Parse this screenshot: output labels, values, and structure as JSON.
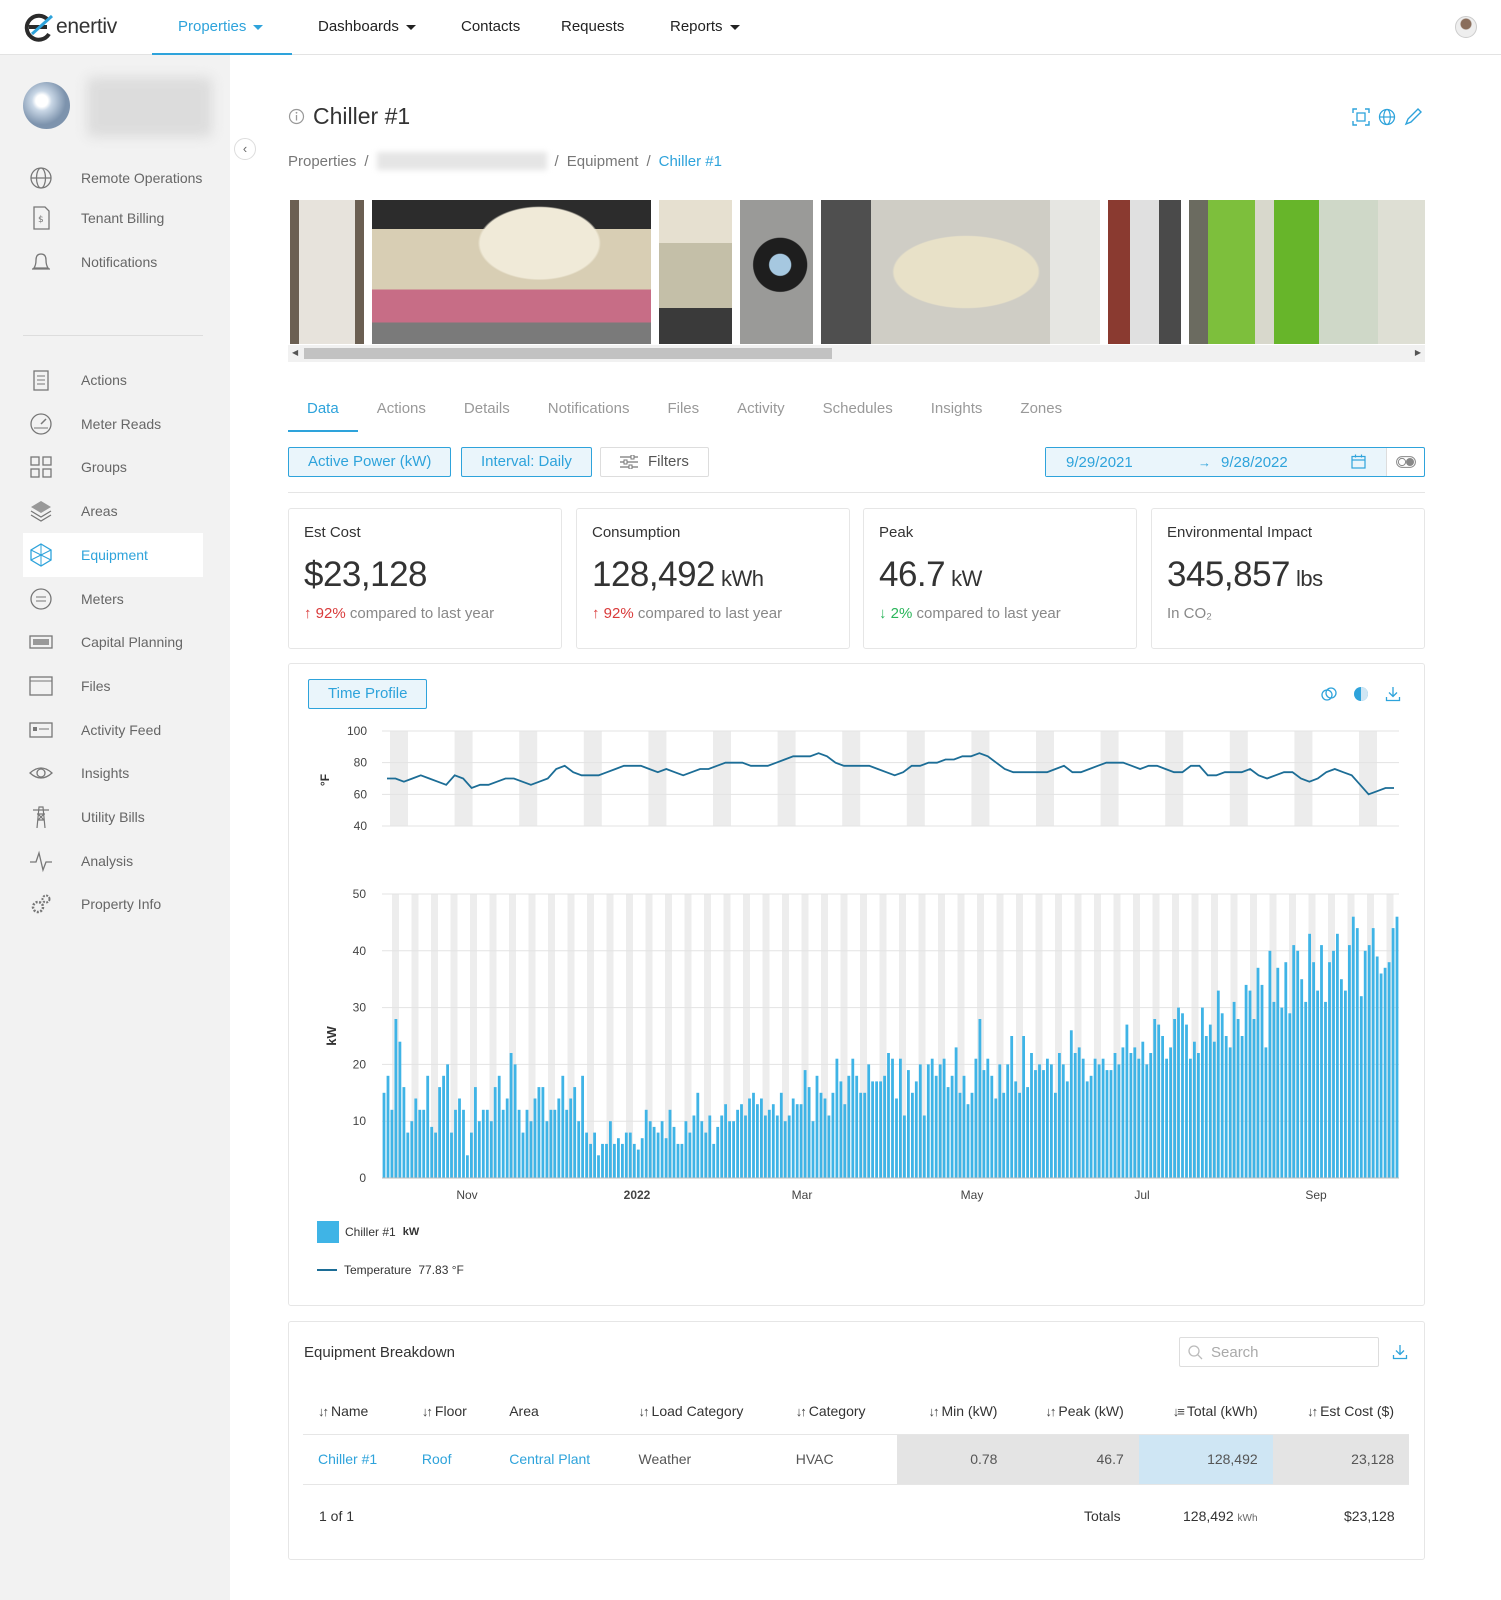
{
  "brand": {
    "name": "enertiv",
    "accent": "#2ea3db"
  },
  "topnav": {
    "items": [
      {
        "label": "Properties",
        "dropdown": true,
        "active": true
      },
      {
        "label": "Dashboards",
        "dropdown": true
      },
      {
        "label": "Contacts"
      },
      {
        "label": "Requests"
      },
      {
        "label": "Reports",
        "dropdown": true
      }
    ]
  },
  "sidebar": {
    "group1": [
      {
        "label": "Remote Operations",
        "icon": "globe-icon"
      },
      {
        "label": "Tenant Billing",
        "icon": "bill-icon"
      },
      {
        "label": "Notifications",
        "icon": "bell-icon"
      }
    ],
    "group2": [
      {
        "label": "Actions",
        "icon": "clipboard-icon"
      },
      {
        "label": "Meter Reads",
        "icon": "gauge-icon"
      },
      {
        "label": "Groups",
        "icon": "grid-icon"
      },
      {
        "label": "Areas",
        "icon": "layers-icon"
      },
      {
        "label": "Equipment",
        "icon": "snowflake-icon",
        "active": true
      },
      {
        "label": "Meters",
        "icon": "meter-icon"
      },
      {
        "label": "Capital Planning",
        "icon": "money-icon"
      },
      {
        "label": "Files",
        "icon": "folder-icon"
      },
      {
        "label": "Activity Feed",
        "icon": "feed-icon"
      },
      {
        "label": "Insights",
        "icon": "eye-icon"
      },
      {
        "label": "Utility Bills",
        "icon": "tower-icon"
      },
      {
        "label": "Analysis",
        "icon": "pulse-icon"
      },
      {
        "label": "Property Info",
        "icon": "gears-icon"
      }
    ]
  },
  "page": {
    "title": "Chiller #1"
  },
  "breadcrumb": {
    "root": "Properties",
    "section": "Equipment",
    "current": "Chiller #1"
  },
  "tabs": [
    "Data",
    "Actions",
    "Details",
    "Notifications",
    "Files",
    "Activity",
    "Schedules",
    "Insights",
    "Zones"
  ],
  "controls": {
    "metric": "Active Power (kW)",
    "interval": "Interval: Daily",
    "filters": "Filters",
    "date_from": "9/29/2021",
    "date_to": "9/28/2022"
  },
  "cards": [
    {
      "title": "Est Cost",
      "value": "$23,128",
      "unit": "",
      "direction": "up",
      "pct": "92%",
      "note": "compared to last year"
    },
    {
      "title": "Consumption",
      "value": "128,492",
      "unit": "kWh",
      "direction": "up",
      "pct": "92%",
      "note": "compared to last year"
    },
    {
      "title": "Peak",
      "value": "46.7",
      "unit": "kW",
      "direction": "down",
      "pct": "2%",
      "note": "compared to last year"
    },
    {
      "title": "Environmental Impact",
      "value": "345,857",
      "unit": "lbs",
      "note_plain": "In CO₂"
    }
  ],
  "chart_panel": {
    "button": "Time Profile"
  },
  "chart_data": [
    {
      "type": "line",
      "ylabel": "°F",
      "ylim": [
        40,
        100
      ],
      "yticks": [
        100,
        80,
        60,
        40
      ],
      "series": [
        {
          "name": "Temperature",
          "values": [
            70,
            70,
            68,
            70,
            72,
            70,
            68,
            66,
            72,
            70,
            64,
            66,
            66,
            68,
            70,
            70,
            68,
            66,
            68,
            70,
            76,
            78,
            74,
            72,
            72,
            72,
            74,
            76,
            78,
            78,
            78,
            76,
            74,
            76,
            74,
            72,
            74,
            76,
            76,
            78,
            80,
            80,
            80,
            78,
            78,
            78,
            80,
            82,
            84,
            84,
            84,
            86,
            84,
            80,
            78,
            78,
            78,
            78,
            76,
            74,
            72,
            74,
            78,
            78,
            80,
            80,
            82,
            82,
            84,
            84,
            86,
            84,
            80,
            76,
            74,
            74,
            74,
            74,
            74,
            76,
            78,
            74,
            74,
            76,
            78,
            80,
            80,
            80,
            78,
            76,
            78,
            78,
            76,
            74,
            74,
            78,
            78,
            72,
            72,
            74,
            74,
            74,
            76,
            72,
            70,
            72,
            74,
            74,
            70,
            68,
            70,
            74,
            76,
            74,
            72,
            66,
            60,
            62,
            64,
            64
          ]
        }
      ]
    },
    {
      "type": "bar",
      "ylabel": "kW",
      "ylim": [
        0,
        50
      ],
      "yticks": [
        50,
        40,
        30,
        20,
        10,
        0
      ],
      "xticks": [
        "Nov",
        "2022",
        "Mar",
        "May",
        "Jul",
        "Sep"
      ],
      "series": [
        {
          "name": "Chiller #1",
          "unit": "kW",
          "values": [
            15,
            18,
            12,
            28,
            24,
            16,
            8,
            10,
            14,
            12,
            12,
            18,
            9,
            8,
            16,
            18,
            20,
            8,
            12,
            14,
            12,
            4,
            8,
            16,
            10,
            12,
            12,
            10,
            16,
            18,
            12,
            14,
            22,
            20,
            12,
            8,
            12,
            10,
            14,
            16,
            16,
            10,
            12,
            12,
            14,
            18,
            12,
            14,
            16,
            10,
            18,
            8,
            6,
            8,
            4,
            6,
            6,
            10,
            6,
            7,
            6,
            8,
            8,
            6,
            5,
            7,
            12,
            10,
            9,
            8,
            10,
            7,
            12,
            9,
            6,
            6,
            10,
            8,
            11,
            15,
            10,
            8,
            11,
            6,
            9,
            11,
            13,
            10,
            10,
            12,
            13,
            11,
            14,
            15,
            13,
            14,
            11,
            12,
            13,
            11,
            15,
            10,
            11,
            14,
            13,
            13,
            19,
            16,
            10,
            18,
            15,
            14,
            11,
            15,
            21,
            17,
            13,
            18,
            21,
            18,
            15,
            15,
            20,
            17,
            17,
            17,
            18,
            22,
            21,
            14,
            21,
            11,
            19,
            15,
            17,
            20,
            11,
            20,
            21,
            18,
            20,
            21,
            16,
            18,
            23,
            15,
            18,
            13,
            15,
            21,
            28,
            19,
            21,
            18,
            14,
            20,
            15,
            20,
            25,
            17,
            15,
            25,
            16,
            22,
            19,
            20,
            19,
            21,
            20,
            15,
            22,
            20,
            17,
            26,
            22,
            23,
            21,
            17,
            18,
            21,
            20,
            21,
            19,
            19,
            22,
            20,
            23,
            27,
            22,
            23,
            21,
            24,
            20,
            22,
            28,
            27,
            25,
            21,
            23,
            28,
            30,
            29,
            27,
            21,
            24,
            22,
            30,
            25,
            27,
            24,
            33,
            29,
            25,
            23,
            31,
            28,
            25,
            34,
            33,
            28,
            37,
            34,
            23,
            40,
            31,
            37,
            30,
            38,
            29,
            41,
            40,
            35,
            31,
            43,
            38,
            33,
            41,
            31,
            38,
            40,
            43,
            35,
            33,
            41,
            46,
            44,
            32,
            40,
            41,
            44,
            39,
            36,
            37,
            38,
            44,
            46
          ]
        }
      ]
    }
  ],
  "legend": {
    "bar_name": "Chiller #1",
    "bar_unit": "kW",
    "line_name": "Temperature",
    "line_value": "77.83 °F"
  },
  "breakdown": {
    "title": "Equipment Breakdown",
    "search_placeholder": "Search",
    "columns": [
      "Name",
      "Floor",
      "Area",
      "Load Category",
      "Category",
      "Min (kW)",
      "Peak (kW)",
      "Total (kWh)",
      "Est Cost ($)"
    ],
    "row": {
      "name": "Chiller #1",
      "floor": "Roof",
      "area": "Central Plant",
      "load_category": "Weather",
      "category": "HVAC",
      "min": "0.78",
      "peak": "46.7",
      "total": "128,492",
      "cost": "23,128"
    },
    "footer": {
      "pager": "1 of 1",
      "totals_label": "Totals",
      "total_kwh": "128,492",
      "total_unit": "kWh",
      "total_cost": "$23,128"
    }
  }
}
